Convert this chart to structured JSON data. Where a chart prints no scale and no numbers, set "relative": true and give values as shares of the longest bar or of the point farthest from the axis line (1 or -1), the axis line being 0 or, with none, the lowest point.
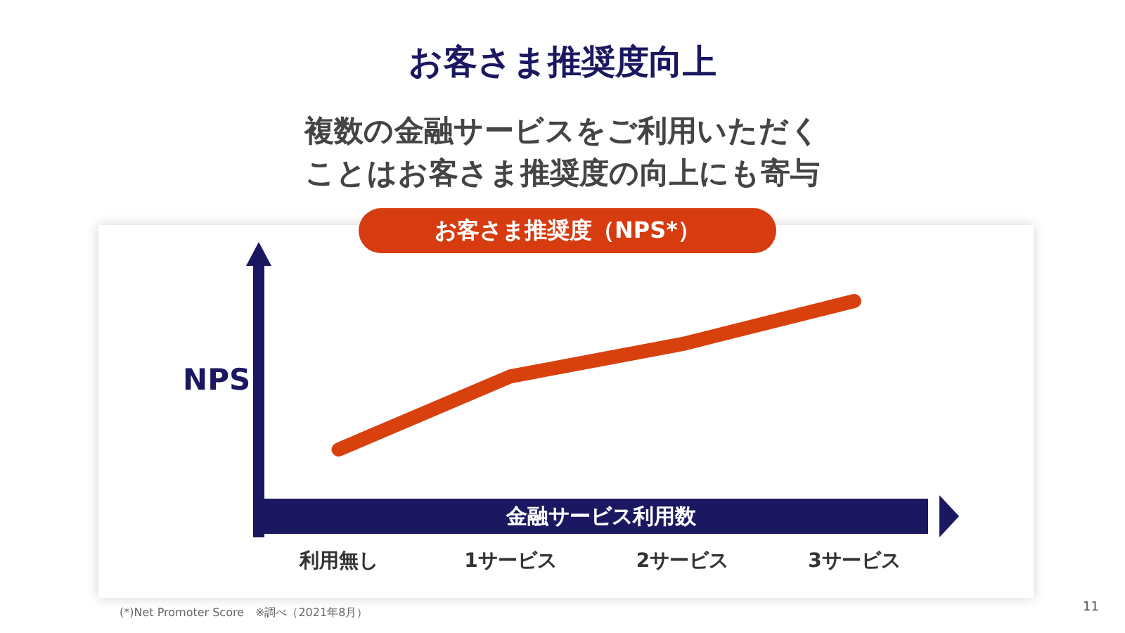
{
  "chart_data": {
    "type": "line",
    "title": "お客さま推奨度向上",
    "subtitle": "複数の金融サービスをご利用いただくことはお客さま推奨度の向上にも寄与",
    "xlabel": "金融サービス利用数",
    "ylabel": "NPS",
    "annotations": [
      "お客さま推奨度（NPS*）",
      "(*)Net Promoter Score　※調べ（2021年8月）",
      "11"
    ],
    "categories": [
      "利用無し",
      "1サービス",
      "2サービス",
      "3サービス"
    ],
    "values": [
      0.31,
      0.65,
      0.8,
      1
    ],
    "color": "#d8400e",
    "relative": true
  }
}
